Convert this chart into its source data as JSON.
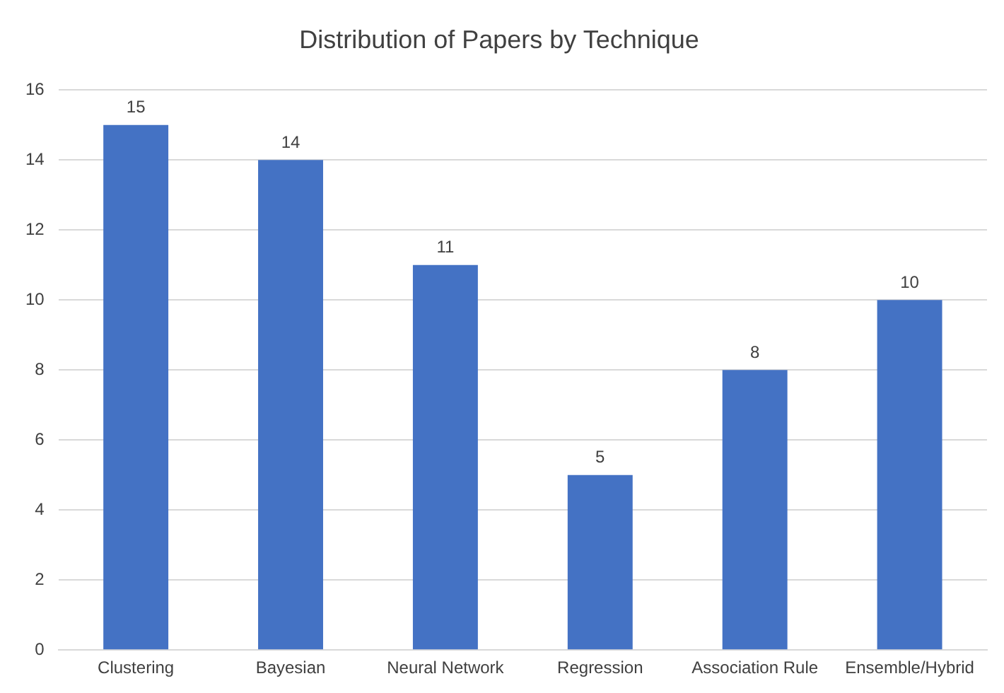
{
  "chart_data": {
    "type": "bar",
    "title": "Distribution of Papers by Technique",
    "categories": [
      "Clustering",
      "Bayesian",
      "Neural Network",
      "Regression",
      "Association Rule",
      "Ensemble/Hybrid"
    ],
    "values": [
      15,
      14,
      11,
      5,
      8,
      10
    ],
    "color": "#4472c4",
    "ylim": [
      0,
      16
    ],
    "yticks": [
      0,
      2,
      4,
      6,
      8,
      10,
      12,
      14,
      16
    ],
    "grid": "y",
    "legend": false,
    "data_labels": true
  }
}
